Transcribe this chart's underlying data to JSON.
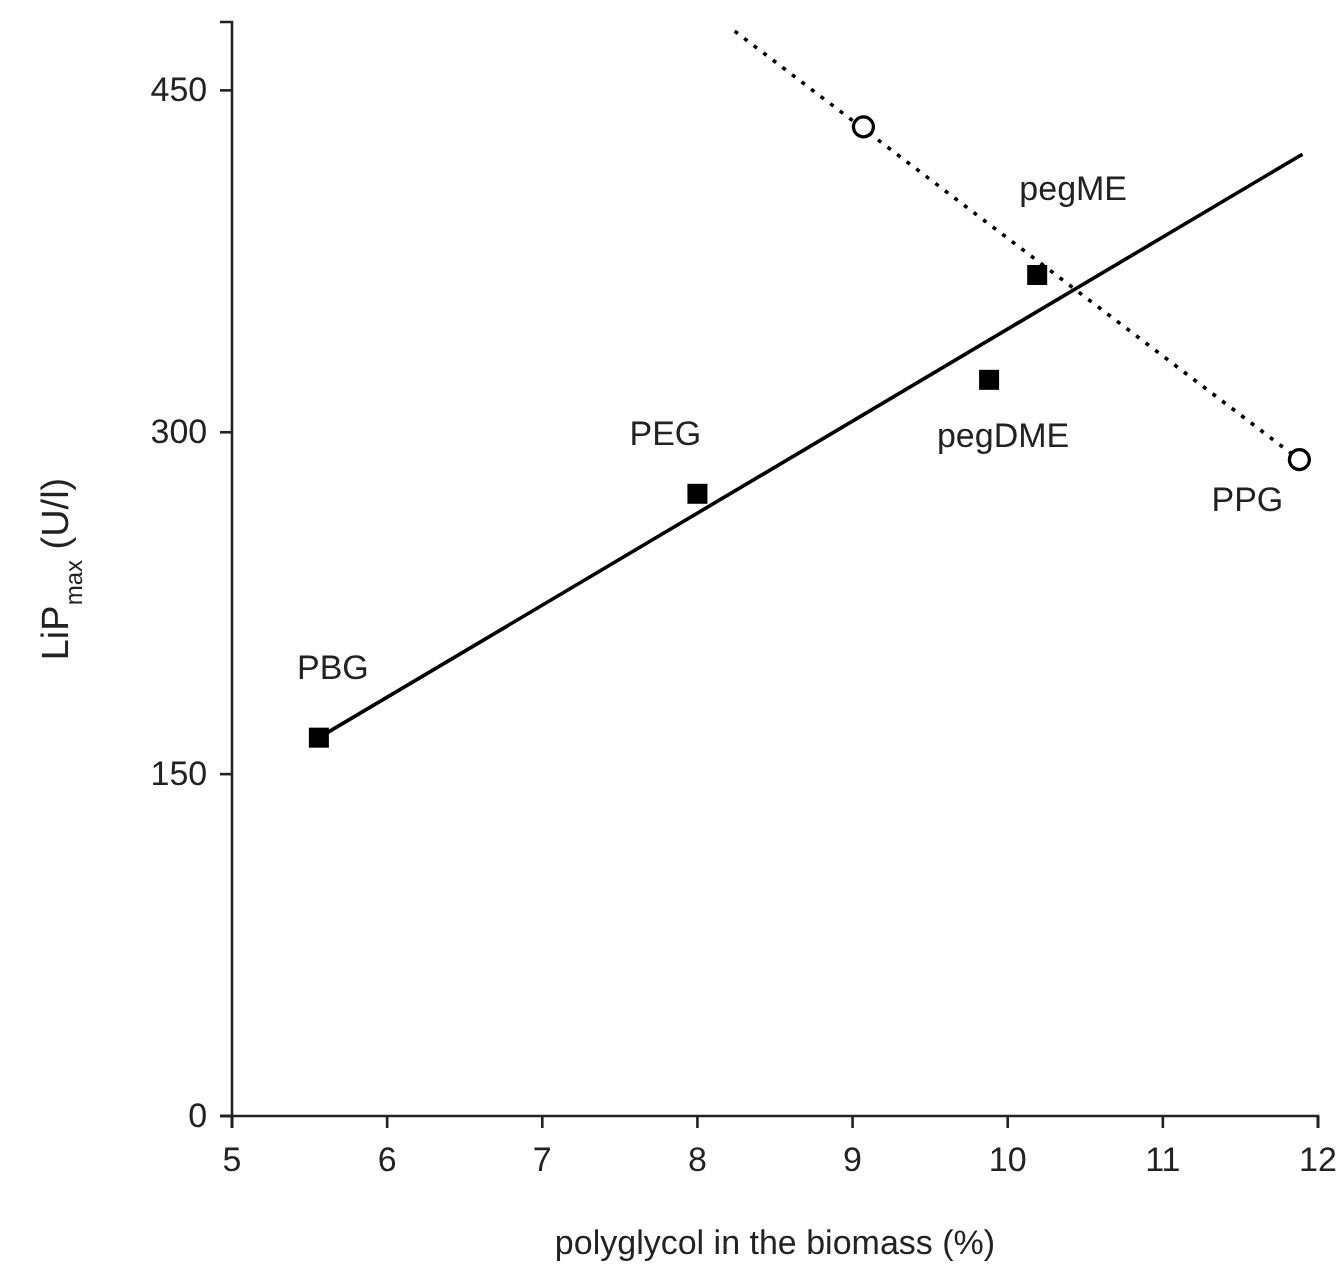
{
  "chart_data": {
    "type": "scatter",
    "xlabel": "polyglycol in the biomass (%)",
    "ylabel": "LiP$_{max}$ (U/l)",
    "xlim": [
      5,
      12
    ],
    "xticks": [
      5,
      6,
      7,
      8,
      9,
      10,
      11,
      12
    ],
    "ylim": [
      0,
      480
    ],
    "yticks": [
      0,
      150,
      300,
      450
    ],
    "grid": false,
    "series": [
      {
        "type": "line",
        "color": "#000000",
        "line_style": "solid",
        "marker": "none",
        "x": [
          5.56,
          11.9
        ],
        "values": [
          166,
          422
        ]
      },
      {
        "type": "line",
        "color": "#000000",
        "line_style": "dotted",
        "marker": "none",
        "x": [
          8.24,
          11.88
        ],
        "values": [
          476,
          288
        ]
      },
      {
        "color": "#000000",
        "marker": "square",
        "x": [
          5.56,
          8.0,
          9.88,
          10.19
        ],
        "values": [
          166,
          273,
          323,
          369
        ]
      },
      {
        "color": "#000000",
        "marker": "circle",
        "x": [
          9.07,
          11.88
        ],
        "values": [
          434,
          288
        ]
      }
    ],
    "annotations": [
      {
        "text": "PBG",
        "x": 5.56,
        "y": 166
      },
      {
        "text": "PEG",
        "x": 8.0,
        "y": 273
      },
      {
        "text": "pegDME",
        "x": 9.88,
        "y": 323
      },
      {
        "text": "pegME",
        "x": 10.19,
        "y": 369
      },
      {
        "text": "PPG",
        "x": 11.88,
        "y": 288
      }
    ]
  }
}
